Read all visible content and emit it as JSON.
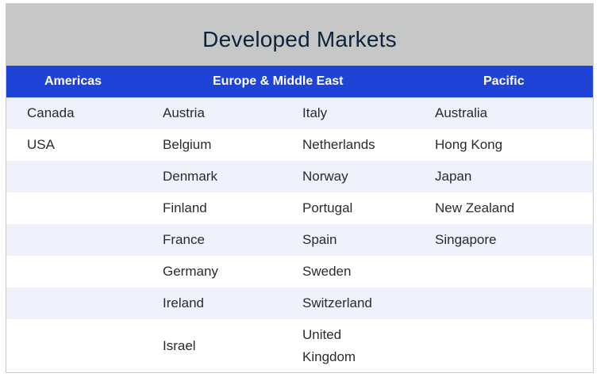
{
  "title": "Developed Markets",
  "headers": {
    "americas": "Americas",
    "europe": "Europe & Middle East",
    "pacific": "Pacific"
  },
  "rows": [
    {
      "americas": "Canada",
      "europe1": "Austria",
      "europe2": "Italy",
      "pacific": "Australia"
    },
    {
      "americas": "USA",
      "europe1": "Belgium",
      "europe2": "Netherlands",
      "pacific": "Hong Kong"
    },
    {
      "americas": "",
      "europe1": "Denmark",
      "europe2": "Norway",
      "pacific": "Japan"
    },
    {
      "americas": "",
      "europe1": "Finland",
      "europe2": "Portugal",
      "pacific": "New Zealand"
    },
    {
      "americas": "",
      "europe1": "France",
      "europe2": "Spain",
      "pacific": "Singapore"
    },
    {
      "americas": "",
      "europe1": "Germany",
      "europe2": "Sweden",
      "pacific": ""
    },
    {
      "americas": "",
      "europe1": "Ireland",
      "europe2": "Switzerland",
      "pacific": ""
    },
    {
      "americas": "",
      "europe1": "Israel",
      "europe2": "United Kingdom",
      "pacific": ""
    }
  ]
}
